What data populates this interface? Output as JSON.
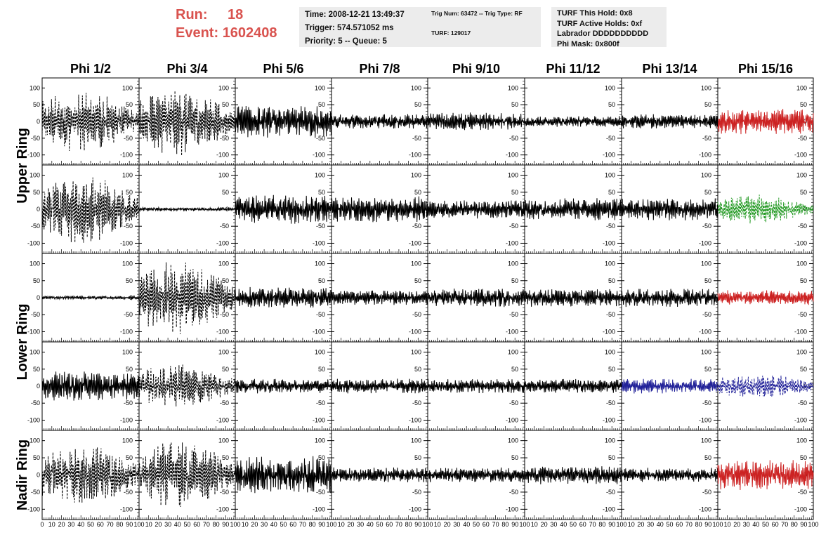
{
  "header": {
    "run_label": "Run:",
    "run_value": "18",
    "event_label": "Event:",
    "event_value": "1602408",
    "time": "Time: 2008-12-21 13:49:37",
    "trigger": "Trigger: 574.571052 ms",
    "priority": "Priority: 5 -- Queue: 5",
    "trig_num": "Trig Num: 63472 -- Trig Type: RF",
    "turf": "TURF: 129017",
    "turf_this_hold": "TURF This Hold: 0x8",
    "turf_active_holds": "TURF Active Holds: 0xf",
    "labrador": "Labrador DDDDDDDDDD",
    "phi_mask": "Phi Mask: 0x800f"
  },
  "chart_data": {
    "type": "line",
    "columns": [
      "Phi 1/2",
      "Phi 3/4",
      "Phi 5/6",
      "Phi 7/8",
      "Phi 9/10",
      "Phi 11/12",
      "Phi 13/14",
      "Phi 15/16"
    ],
    "row_labels": [
      {
        "text": "Upper Ring",
        "rows": [
          0,
          1
        ]
      },
      {
        "text": "Lower Ring",
        "rows": [
          2,
          3
        ]
      },
      {
        "text": "Nadir Ring",
        "rows": [
          4
        ]
      }
    ],
    "xlim": [
      0,
      100
    ],
    "ylim": [
      -130,
      130
    ],
    "yticks": [
      -100,
      -50,
      0,
      50,
      100
    ],
    "xtick_labels_first": [
      "0",
      "10",
      "20",
      "30",
      "40",
      "50",
      "60",
      "70",
      "80",
      "90",
      "100"
    ],
    "xtick_labels": [
      "10",
      "20",
      "30",
      "40",
      "50",
      "60",
      "70",
      "80",
      "90",
      "100"
    ],
    "colors": {
      "default": "#000000",
      "red": "#cc2222",
      "green": "#229922",
      "blue": "#222299"
    },
    "grid": false,
    "legend": "none",
    "panels": [
      [
        {
          "amp": 85,
          "style": "dashed",
          "color": "default"
        },
        {
          "amp": 95,
          "style": "dashed",
          "color": "default"
        },
        {
          "amp": 5,
          "style": "solid",
          "color": "default"
        },
        {
          "amp": 40,
          "style": "solid",
          "color": "default"
        },
        {
          "amp": 85,
          "style": "dashed",
          "color": "default"
        }
      ],
      [
        {
          "amp": 95,
          "style": "dashed",
          "color": "default"
        },
        {
          "amp": 5,
          "style": "solid",
          "color": "default"
        },
        {
          "amp": 100,
          "style": "dashed",
          "color": "default"
        },
        {
          "amp": 60,
          "style": "dashed",
          "color": "default"
        },
        {
          "amp": 95,
          "style": "dashed",
          "color": "default"
        }
      ],
      [
        {
          "amp": 45,
          "style": "solid",
          "color": "default"
        },
        {
          "amp": 40,
          "style": "solid",
          "color": "default"
        },
        {
          "amp": 30,
          "style": "solid",
          "color": "default"
        },
        {
          "amp": 20,
          "style": "solid",
          "color": "default"
        },
        {
          "amp": 50,
          "style": "solid",
          "color": "default"
        }
      ],
      [
        {
          "amp": 20,
          "style": "solid",
          "color": "default"
        },
        {
          "amp": 35,
          "style": "solid",
          "color": "default"
        },
        {
          "amp": 20,
          "style": "solid",
          "color": "default"
        },
        {
          "amp": 20,
          "style": "solid",
          "color": "default"
        },
        {
          "amp": 20,
          "style": "solid",
          "color": "default"
        }
      ],
      [
        {
          "amp": 25,
          "style": "solid",
          "color": "default"
        },
        {
          "amp": 25,
          "style": "solid",
          "color": "default"
        },
        {
          "amp": 25,
          "style": "solid",
          "color": "default"
        },
        {
          "amp": 20,
          "style": "solid",
          "color": "default"
        },
        {
          "amp": 20,
          "style": "solid",
          "color": "default"
        }
      ],
      [
        {
          "amp": 15,
          "style": "solid",
          "color": "default"
        },
        {
          "amp": 30,
          "style": "solid",
          "color": "default"
        },
        {
          "amp": 25,
          "style": "solid",
          "color": "default"
        },
        {
          "amp": 20,
          "style": "solid",
          "color": "default"
        },
        {
          "amp": 25,
          "style": "solid",
          "color": "default"
        }
      ],
      [
        {
          "amp": 20,
          "style": "solid",
          "color": "default"
        },
        {
          "amp": 30,
          "style": "solid",
          "color": "default"
        },
        {
          "amp": 25,
          "style": "solid",
          "color": "default"
        },
        {
          "amp": 20,
          "style": "solid",
          "color": "blue"
        },
        {
          "amp": 20,
          "style": "solid",
          "color": "default"
        }
      ],
      [
        {
          "amp": 35,
          "style": "solid",
          "color": "red"
        },
        {
          "amp": 40,
          "style": "dashed",
          "color": "green"
        },
        {
          "amp": 20,
          "style": "solid",
          "color": "red"
        },
        {
          "amp": 35,
          "style": "dashed",
          "color": "blue"
        },
        {
          "amp": 40,
          "style": "solid",
          "color": "red"
        }
      ]
    ]
  }
}
